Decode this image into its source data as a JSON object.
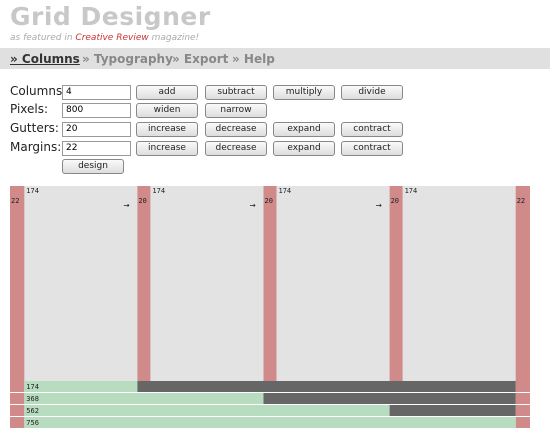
{
  "header": {
    "title": "Grid Designer",
    "subtitle_before": "as featured in ",
    "subtitle_link": "Creative Review",
    "subtitle_after": " magazine!"
  },
  "nav": [
    "» Columns",
    "» Typography",
    "» Export",
    "» Help"
  ],
  "form": {
    "rows": [
      {
        "label": "Columns:",
        "value": "4",
        "buttons": [
          "add",
          "subtract",
          "multiply",
          "divide"
        ]
      },
      {
        "label": "Pixels:",
        "value": "800",
        "buttons": [
          "widen",
          "narrow"
        ]
      },
      {
        "label": "Gutters:",
        "value": "20",
        "buttons": [
          "increase",
          "decrease",
          "expand",
          "contract"
        ]
      },
      {
        "label": "Margins:",
        "value": "22",
        "buttons": [
          "increase",
          "decrease",
          "expand",
          "contract"
        ]
      }
    ],
    "submit": "design"
  },
  "grid": {
    "margins": [
      22,
      22
    ],
    "columns": [
      174,
      174,
      174,
      174
    ],
    "gutters": [
      20,
      20,
      20
    ],
    "arrow": "→",
    "totals": [
      174,
      368,
      562,
      756
    ]
  }
}
